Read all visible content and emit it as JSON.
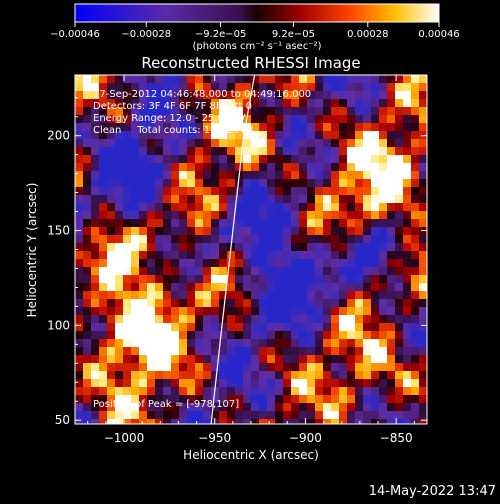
{
  "chart_data": {
    "type": "heatmap",
    "title": "Reconstructed RHESSI Image",
    "xlabel": "Heliocentric X (arcsec)",
    "ylabel": "Heliocentric Y (arcsec)",
    "xlim": [
      -1027,
      -833
    ],
    "ylim": [
      48,
      232
    ],
    "x_ticks": [
      -1000,
      -950,
      -900,
      -850
    ],
    "x_tick_labels": [
      "−1000",
      "−950",
      "−900",
      "−850"
    ],
    "y_ticks": [
      50,
      100,
      150,
      200
    ],
    "y_tick_labels": [
      "50",
      "100",
      "150",
      "200"
    ],
    "colorbar": {
      "min": -0.00046,
      "max": 0.00046,
      "ticks": [
        -0.00046,
        -0.00028,
        -9.2e-05,
        9.2e-05,
        0.00028,
        0.00046
      ],
      "tick_labels": [
        "−0.00046",
        "−0.00028",
        "−9.2e−05",
        "9.2e−05",
        "0.00028",
        "0.00046"
      ],
      "unit_label": "(photons cm⁻² s⁻¹ asec⁻²)",
      "colormap": "blue-purple-red-yellow-white"
    },
    "annotations": [
      "17-Sep-2012 04:46:48.000 to 04:49:16.000",
      "Detectors: 3F 4F 6F 7F 8F, Att 0",
      "Energy Range: 12.0 - 25.0 keV",
      "Clean     Total counts: 1.72E+03"
    ],
    "peak_label": "Position of Peak = [-978,107]",
    "peak": [
      -978,
      107
    ],
    "limb": [
      [
        -952,
        48
      ],
      [
        -946,
        100
      ],
      [
        -940,
        150
      ],
      [
        -934,
        200
      ],
      [
        -928,
        232
      ]
    ],
    "grid": false,
    "colors": {
      "background": "#000000",
      "foreground": "#ffffff"
    }
  },
  "footer": {
    "timestamp": "14-May-2022 13:47"
  }
}
